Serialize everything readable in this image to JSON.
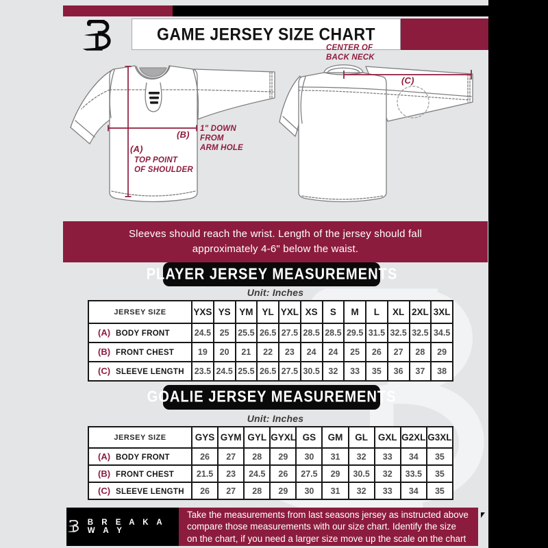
{
  "header": {
    "title": "GAME JERSEY SIZE CHART",
    "brand_logo": "breakaway-b-logo"
  },
  "colors": {
    "maroon": "#8c1c3e",
    "black": "#000000",
    "background": "#e4e5e7",
    "annotation": "#8e1c3c"
  },
  "diagram": {
    "front": {
      "label_a_key": "(A)",
      "label_a_note": "TOP POINT\nOF SHOULDER",
      "label_b_key": "(B)",
      "label_b_note": "1\" DOWN\nFROM\nARM HOLE"
    },
    "back": {
      "label_c_key": "(C)",
      "label_c_note": "CENTER OF\nBACK NECK"
    }
  },
  "notes": {
    "instruction": "Sleeves should reach the wrist. Length of the jersey should fall\napproximately 4-6\" below the waist."
  },
  "sections": {
    "player": {
      "heading": "PLAYER JERSEY MEASUREMENTS",
      "unit_label": "Unit: Inches",
      "table": {
        "size_header": "JERSEY SIZE",
        "columns": [
          "YXS",
          "YS",
          "YM",
          "YL",
          "YXL",
          "XS",
          "S",
          "M",
          "L",
          "XL",
          "2XL",
          "3XL"
        ],
        "rows": [
          {
            "key": "(A)",
            "label": "BODY FRONT",
            "values": [
              "24.5",
              "25",
              "25.5",
              "26.5",
              "27.5",
              "28.5",
              "28.5",
              "29.5",
              "31.5",
              "32.5",
              "32.5",
              "34.5"
            ]
          },
          {
            "key": "(B)",
            "label": "FRONT CHEST",
            "values": [
              "19",
              "20",
              "21",
              "22",
              "23",
              "24",
              "24",
              "25",
              "26",
              "27",
              "28",
              "29"
            ]
          },
          {
            "key": "(C)",
            "label": "SLEEVE LENGTH",
            "values": [
              "23.5",
              "24.5",
              "25.5",
              "26.5",
              "27.5",
              "30.5",
              "32",
              "33",
              "35",
              "36",
              "37",
              "38"
            ]
          }
        ]
      }
    },
    "goalie": {
      "heading": "GOALIE JERSEY MEASUREMENTS",
      "unit_label": "Unit: Inches",
      "table": {
        "size_header": "JERSEY SIZE",
        "columns": [
          "GYS",
          "GYM",
          "GYL",
          "GYXL",
          "GS",
          "GM",
          "GL",
          "GXL",
          "G2XL",
          "G3XL"
        ],
        "rows": [
          {
            "key": "(A)",
            "label": "BODY FRONT",
            "values": [
              "26",
              "27",
              "28",
              "29",
              "30",
              "31",
              "32",
              "33",
              "34",
              "35"
            ]
          },
          {
            "key": "(B)",
            "label": "FRONT CHEST",
            "values": [
              "21.5",
              "23",
              "24.5",
              "26",
              "27.5",
              "29",
              "30.5",
              "32",
              "33.5",
              "35"
            ]
          },
          {
            "key": "(C)",
            "label": "SLEEVE LENGTH",
            "values": [
              "26",
              "27",
              "28",
              "29",
              "30",
              "31",
              "32",
              "33",
              "34",
              "35"
            ]
          }
        ]
      }
    }
  },
  "footer": {
    "brand": "B R E A K A W A Y",
    "note": "Take the measurements from last seasons jersey as instructed above\ncompare those measurements  with our size chart. Identify the size\non the chart, if you need a larger size move up the scale on the chart"
  }
}
